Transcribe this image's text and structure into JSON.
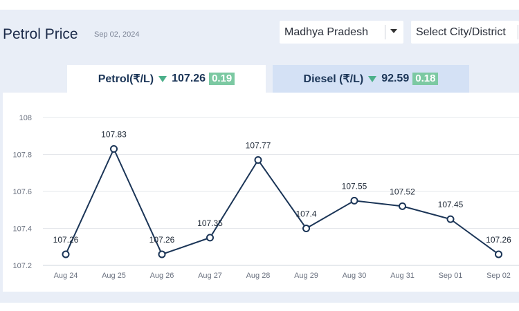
{
  "header": {
    "title": "Petrol Price",
    "date": "Sep 02, 2024"
  },
  "filters": {
    "state": "Madhya Pradesh",
    "city_placeholder": "Select City/District"
  },
  "tabs": [
    {
      "label": "Petrol(₹/L)",
      "price": "107.26",
      "change": "0.19",
      "direction": "down"
    },
    {
      "label": "Diesel (₹/L)",
      "price": "92.59",
      "change": "0.18",
      "direction": "down"
    }
  ],
  "colors": {
    "line": "#1b3557",
    "badge": "#7cc9a2",
    "down_arrow": "#4cb08a",
    "panel_bg": "#e9eef7",
    "inactive_tab": "#d4e1f5"
  },
  "chart_data": {
    "type": "line",
    "categories": [
      "Aug 24",
      "Aug 25",
      "Aug 26",
      "Aug 27",
      "Aug 28",
      "Aug 29",
      "Aug 30",
      "Aug 31",
      "Sep 01",
      "Sep 02"
    ],
    "values": [
      107.26,
      107.83,
      107.26,
      107.35,
      107.77,
      107.4,
      107.55,
      107.52,
      107.45,
      107.26
    ],
    "data_labels": [
      "107.26",
      "107.83",
      "107.26",
      "107.35",
      "107.77",
      "107.4",
      "107.55",
      "107.52",
      "107.45",
      "107.26"
    ],
    "yticks": [
      "107.2",
      "107.4",
      "107.6",
      "107.8",
      "108"
    ],
    "ytick_values": [
      107.2,
      107.4,
      107.6,
      107.8,
      108
    ],
    "ylim": [
      107.2,
      108
    ],
    "grid": true
  }
}
